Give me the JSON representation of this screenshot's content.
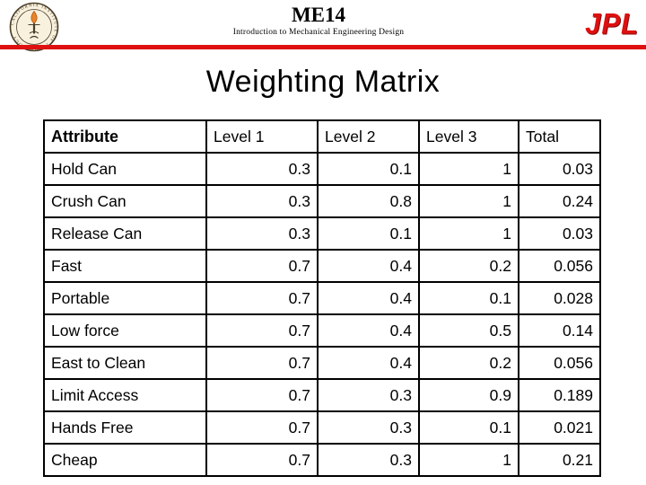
{
  "header": {
    "course_code": "ME14",
    "course_subtitle": "Introduction to Mechanical Engineering Design",
    "jpl_logo_text": "JPL",
    "seal_ring_text": "CALIFORNIA INSTITUTE OF TECHNOLOGY"
  },
  "slide": {
    "title": "Weighting Matrix"
  },
  "colors": {
    "accent_red": "#de1010",
    "seal_background": "#f8f1de",
    "seal_outline": "#4a3c26",
    "flame_orange": "#e8832a",
    "table_border": "#000000",
    "text_black": "#000000"
  },
  "table": {
    "columns": [
      "Attribute",
      "Level 1",
      "Level 2",
      "Level 3",
      "Total"
    ],
    "rows": [
      [
        "Hold Can",
        "0.3",
        "0.1",
        "1",
        "0.03"
      ],
      [
        "Crush Can",
        "0.3",
        "0.8",
        "1",
        "0.24"
      ],
      [
        "Release Can",
        "0.3",
        "0.1",
        "1",
        "0.03"
      ],
      [
        "Fast",
        "0.7",
        "0.4",
        "0.2",
        "0.056"
      ],
      [
        "Portable",
        "0.7",
        "0.4",
        "0.1",
        "0.028"
      ],
      [
        "Low force",
        "0.7",
        "0.4",
        "0.5",
        "0.14"
      ],
      [
        "East to Clean",
        "0.7",
        "0.4",
        "0.2",
        "0.056"
      ],
      [
        "Limit Access",
        "0.7",
        "0.3",
        "0.9",
        "0.189"
      ],
      [
        "Hands Free",
        "0.7",
        "0.3",
        "0.1",
        "0.021"
      ],
      [
        "Cheap",
        "0.7",
        "0.3",
        "1",
        "0.21"
      ]
    ]
  }
}
